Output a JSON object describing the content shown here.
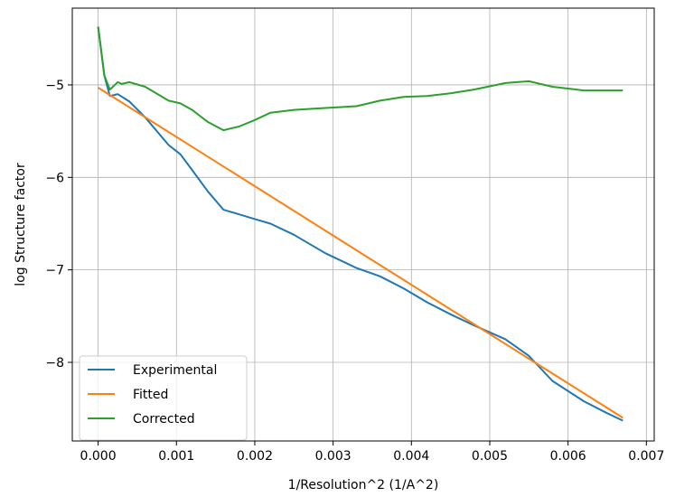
{
  "chart_data": {
    "type": "line",
    "xlabel": "1/Resolution^2 (1/A^2)",
    "ylabel": "log Structure factor",
    "xlim": [
      -0.00033,
      0.0071
    ],
    "ylim": [
      -8.85,
      -4.17
    ],
    "grid": true,
    "legend_position": "lower-left",
    "x_ticks": [
      0.0,
      0.001,
      0.002,
      0.003,
      0.004,
      0.005,
      0.006,
      0.007
    ],
    "x_tick_labels": [
      "0.000",
      "0.001",
      "0.002",
      "0.003",
      "0.004",
      "0.005",
      "0.006",
      "0.007"
    ],
    "y_ticks": [
      -8,
      -7,
      -6,
      -5
    ],
    "y_tick_labels": [
      "−8",
      "−7",
      "−6",
      "−5"
    ],
    "series": [
      {
        "name": "Experimental",
        "color": "#1f77b4",
        "x": [
          0.0,
          8e-05,
          0.00015,
          0.00025,
          0.0004,
          0.0006,
          0.0009,
          0.00105,
          0.0012,
          0.0014,
          0.0016,
          0.0018,
          0.002,
          0.0022,
          0.0025,
          0.0029,
          0.0033,
          0.0036,
          0.0039,
          0.0042,
          0.0045,
          0.0048,
          0.0052,
          0.0055,
          0.0058,
          0.0062,
          0.0065,
          0.0067
        ],
        "y": [
          -4.37,
          -4.9,
          -5.12,
          -5.1,
          -5.18,
          -5.35,
          -5.65,
          -5.75,
          -5.92,
          -6.15,
          -6.35,
          -6.4,
          -6.45,
          -6.5,
          -6.62,
          -6.82,
          -6.98,
          -7.07,
          -7.2,
          -7.35,
          -7.48,
          -7.6,
          -7.75,
          -7.93,
          -8.2,
          -8.42,
          -8.55,
          -8.63
        ]
      },
      {
        "name": "Fitted",
        "color": "#ff7f0e",
        "x": [
          0.0,
          0.0067
        ],
        "y": [
          -5.03,
          -8.6
        ]
      },
      {
        "name": "Corrected",
        "color": "#2ca02c",
        "x": [
          0.0,
          8e-05,
          0.00015,
          0.00025,
          0.0003,
          0.0004,
          0.0006,
          0.0007,
          0.0009,
          0.00105,
          0.0012,
          0.0014,
          0.0016,
          0.0018,
          0.002,
          0.0022,
          0.0025,
          0.0029,
          0.0033,
          0.0036,
          0.0039,
          0.0042,
          0.0045,
          0.0048,
          0.0052,
          0.0055,
          0.0058,
          0.0062,
          0.0065,
          0.0067
        ],
        "y": [
          -4.37,
          -4.9,
          -5.05,
          -4.97,
          -4.99,
          -4.97,
          -5.02,
          -5.07,
          -5.17,
          -5.2,
          -5.27,
          -5.4,
          -5.49,
          -5.45,
          -5.38,
          -5.3,
          -5.27,
          -5.25,
          -5.23,
          -5.17,
          -5.13,
          -5.12,
          -5.09,
          -5.05,
          -4.98,
          -4.96,
          -5.02,
          -5.06,
          -5.06,
          -5.06
        ]
      }
    ]
  }
}
